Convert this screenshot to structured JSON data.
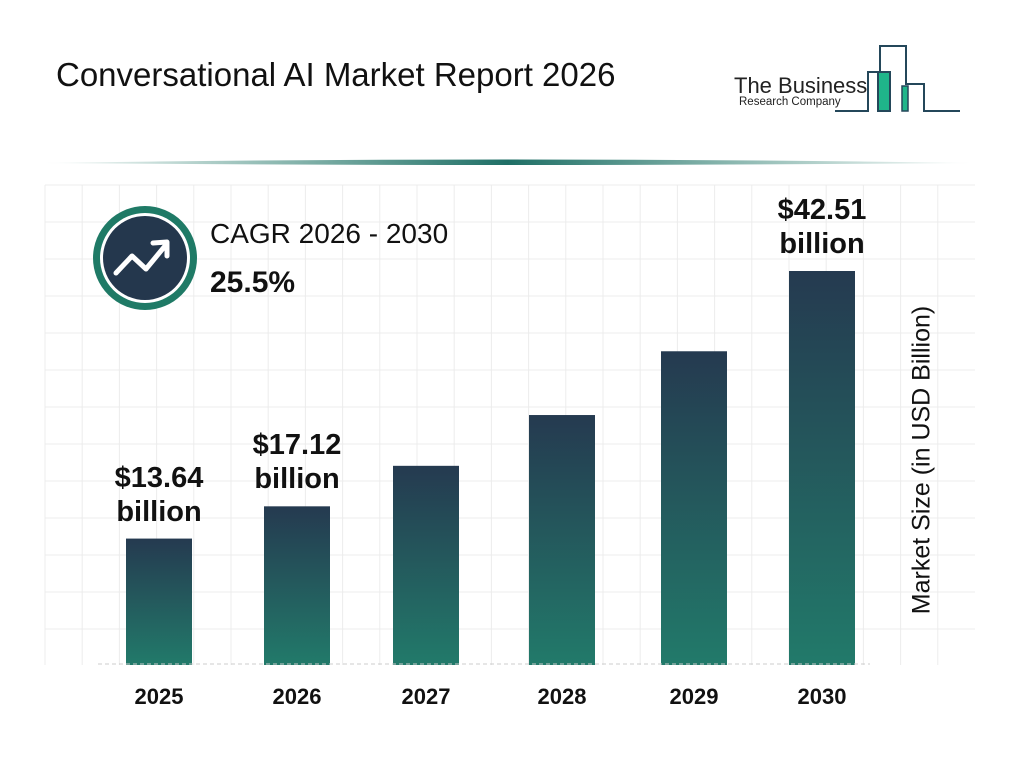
{
  "header": {
    "title": "Conversational AI Market Report 2026"
  },
  "logo": {
    "line1": "The Business",
    "line2": "Research Company"
  },
  "cagr": {
    "label": "CAGR 2026 - 2030",
    "value": "25.5%",
    "icon": "trending-up-icon"
  },
  "colors": {
    "bar_top": "#253a50",
    "bar_bottom": "#227a6a",
    "accent": "#1f7a66",
    "logo_green": "#1fb58a"
  },
  "chart_data": {
    "type": "bar",
    "title": "Conversational AI Market Report 2026",
    "xlabel": "",
    "ylabel": "Market Size (in USD Billion)",
    "categories": [
      "2025",
      "2026",
      "2027",
      "2028",
      "2029",
      "2030"
    ],
    "values": [
      13.64,
      17.12,
      21.49,
      26.97,
      33.85,
      42.51
    ],
    "data_labels": [
      {
        "index": 0,
        "value": "$13.64",
        "unit": "billion"
      },
      {
        "index": 1,
        "value": "$17.12",
        "unit": "billion"
      },
      {
        "index": 5,
        "value": "$42.51",
        "unit": "billion"
      }
    ],
    "ylim": [
      0,
      45
    ],
    "grid": true
  }
}
